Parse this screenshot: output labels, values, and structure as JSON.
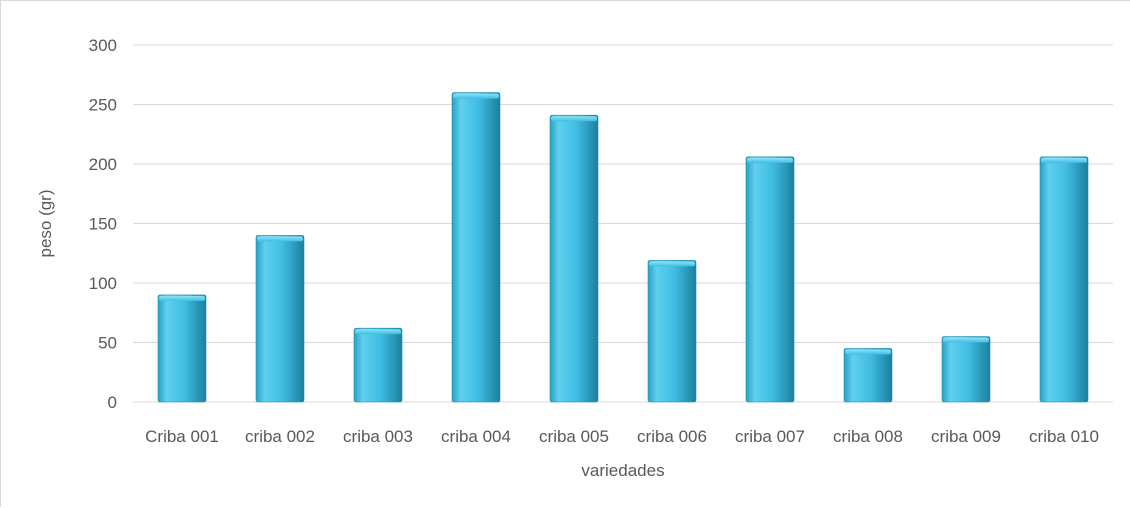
{
  "chart_data": {
    "type": "bar",
    "categories": [
      "Criba 001",
      "criba 002",
      "criba 003",
      "criba 004",
      "criba 005",
      "criba 006",
      "criba 007",
      "criba 008",
      "criba 009",
      "criba 010"
    ],
    "values": [
      90,
      140,
      62,
      260,
      241,
      119,
      206,
      45,
      55,
      206
    ],
    "title": "",
    "xlabel": "variedades",
    "ylabel": "peso (gr)",
    "ylim": [
      0,
      300
    ],
    "yticks": [
      0,
      50,
      100,
      150,
      200,
      250,
      300
    ],
    "grid": true,
    "legend": "none",
    "colors": {
      "bar_light": "#5fd0ee",
      "bar_mid": "#34b4d9",
      "bar_dark": "#1b7f9e",
      "gridline": "#d9d9d9",
      "text": "#595959"
    }
  }
}
